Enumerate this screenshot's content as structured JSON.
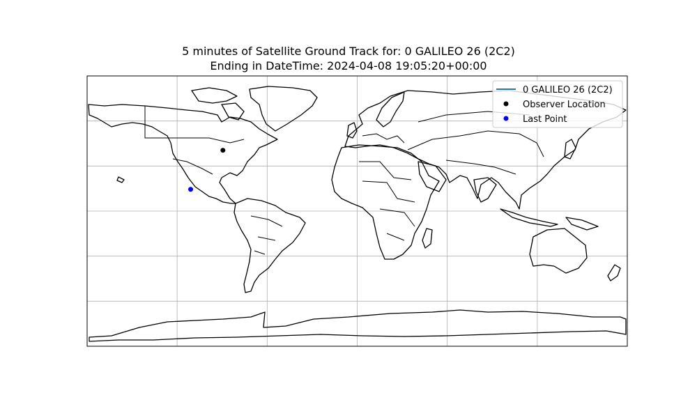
{
  "title": {
    "line1": "5 minutes of Satellite Ground Track for: 0 GALILEO 26 (2C2)",
    "line2": "Ending in DateTime: 2024-04-08 19:05:20+00:00"
  },
  "map": {
    "projection": "PlateCarree",
    "extent_lon": [
      -180,
      180
    ],
    "extent_lat": [
      -90,
      90
    ],
    "grid": true,
    "grid_lon_step": 60,
    "grid_lat_step": 30,
    "coastlines": true,
    "country_borders": true
  },
  "chart_data": {
    "type": "scatter",
    "series": [
      {
        "name": "0 GALILEO 26 (2C2)",
        "kind": "line",
        "color": "#1f77b4",
        "points": []
      },
      {
        "name": "Observer Location",
        "kind": "point",
        "color": "#000000",
        "lon": -89.5,
        "lat": 40.5
      },
      {
        "name": "Last Point",
        "kind": "point",
        "color": "#0000ff",
        "lon": -111.0,
        "lat": 14.5
      }
    ],
    "legend_position": "top-right"
  },
  "legend": {
    "items": [
      {
        "label": "0 GALILEO 26 (2C2)",
        "symbol": "line",
        "color": "#1f77b4"
      },
      {
        "label": "Observer Location",
        "symbol": "dot",
        "color": "#000000"
      },
      {
        "label": "Last Point",
        "symbol": "dot",
        "color": "#0000ff"
      }
    ]
  }
}
